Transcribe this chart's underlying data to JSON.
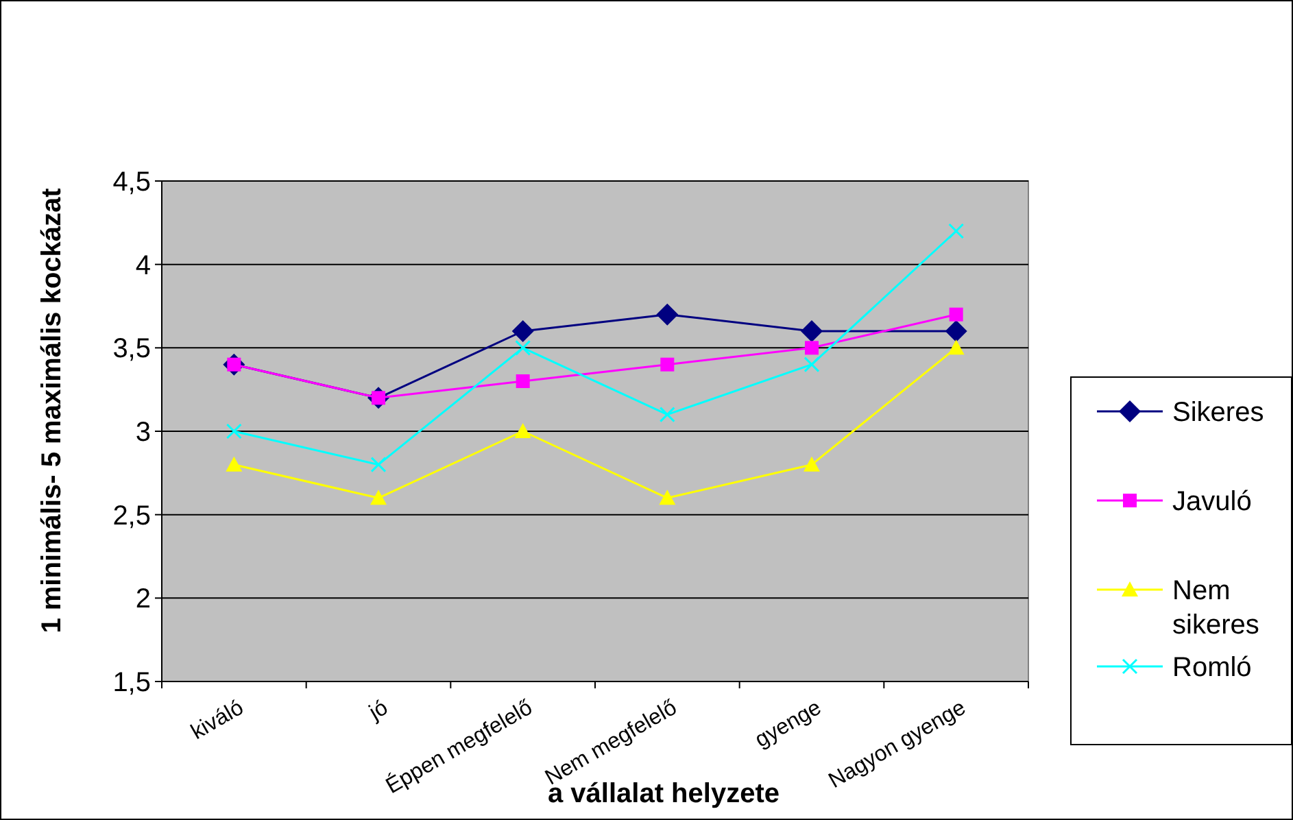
{
  "chart_data": {
    "type": "line",
    "xlabel": "a vállalat helyzete",
    "ylabel": "1 minimális- 5 maximális kockázat",
    "categories": [
      "kiváló",
      "jó",
      "Éppen megfelelő",
      "Nem megfelelő",
      "gyenge",
      "Nagyon gyenge"
    ],
    "ylim": [
      1.5,
      4.5
    ],
    "yticks": [
      {
        "value": 1.5,
        "label": "1,5"
      },
      2,
      {
        "value": 2.5,
        "label": "2,5"
      },
      3,
      {
        "value": 3.5,
        "label": "3,5"
      },
      4,
      {
        "value": 4.5,
        "label": "4,5"
      }
    ],
    "grid": "y",
    "legend": "right",
    "series": [
      {
        "name": "Sikeres",
        "color": "#000080",
        "marker": "diamond",
        "values": [
          3.4,
          3.2,
          3.6,
          3.7,
          3.6,
          3.6
        ]
      },
      {
        "name": "Javuló",
        "color": "#ff00ff",
        "marker": "square",
        "values": [
          3.4,
          3.2,
          3.3,
          3.4,
          3.5,
          3.7
        ]
      },
      {
        "name": "Nem sikeres",
        "color": "#ffff00",
        "marker": "triangle",
        "values": [
          2.8,
          2.6,
          3.0,
          2.6,
          2.8,
          3.5
        ]
      },
      {
        "name": "Romló",
        "color": "#00ffff",
        "marker": "cross",
        "values": [
          3.0,
          2.8,
          3.5,
          3.1,
          3.4,
          4.2
        ]
      }
    ]
  }
}
